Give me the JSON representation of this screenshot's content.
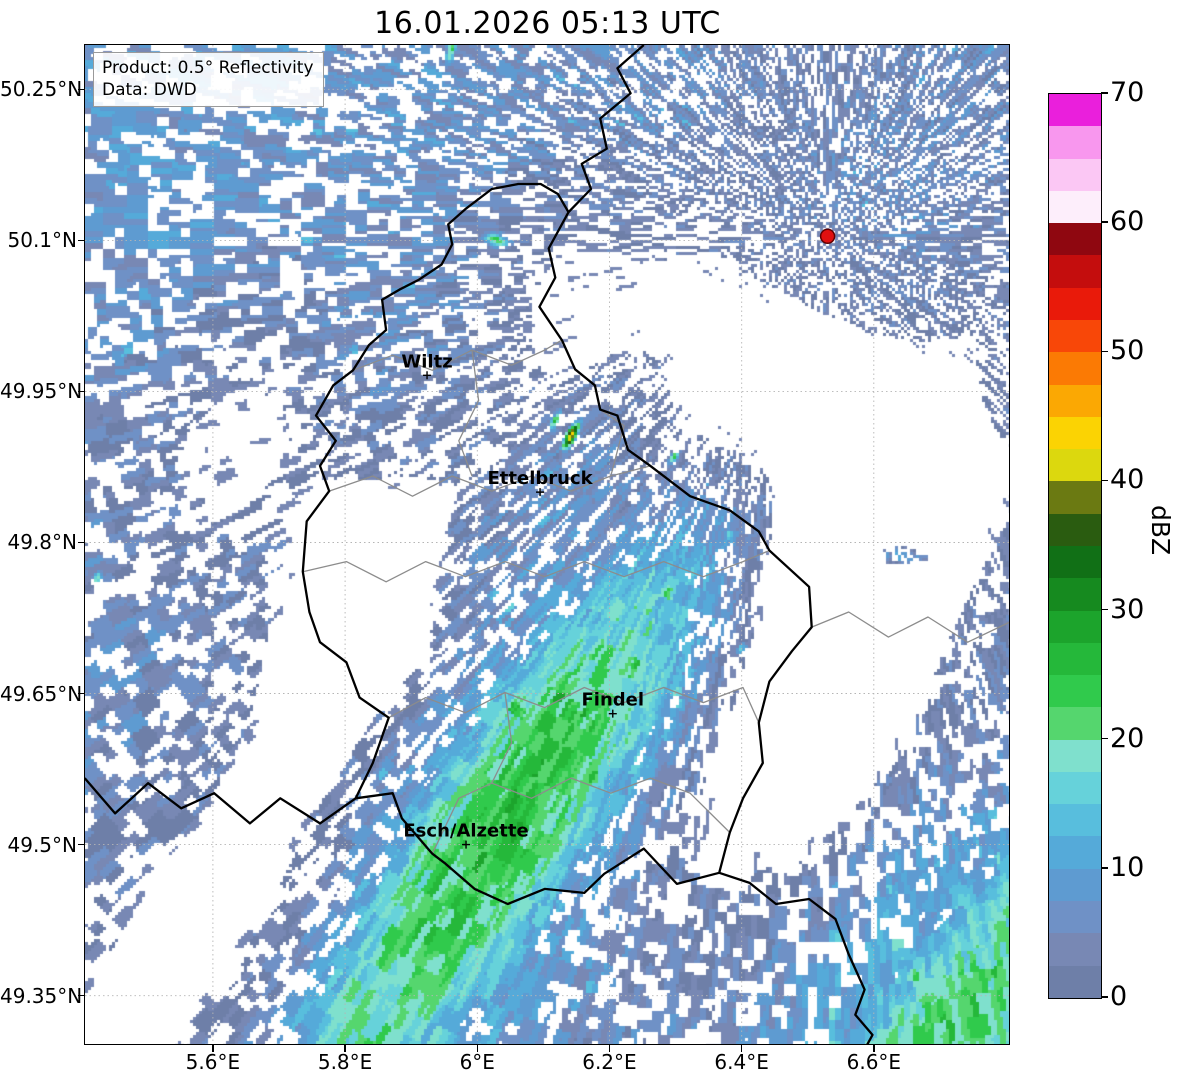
{
  "title": "16.01.2026 05:13 UTC",
  "info_box": {
    "line1": "Product: 0.5° Reflectivity",
    "line2": "Data: DWD"
  },
  "axes": {
    "lat_ticks": [
      {
        "label": "50.25°N",
        "value": 50.25
      },
      {
        "label": "50.1°N",
        "value": 50.1
      },
      {
        "label": "49.95°N",
        "value": 49.95
      },
      {
        "label": "49.8°N",
        "value": 49.8
      },
      {
        "label": "49.65°N",
        "value": 49.65
      },
      {
        "label": "49.5°N",
        "value": 49.5
      },
      {
        "label": "49.35°N",
        "value": 49.35
      }
    ],
    "lon_ticks": [
      {
        "label": "5.6°E",
        "value": 5.6
      },
      {
        "label": "5.8°E",
        "value": 5.8
      },
      {
        "label": "6°E",
        "value": 6.0
      },
      {
        "label": "6.2°E",
        "value": 6.2
      },
      {
        "label": "6.4°E",
        "value": 6.4
      },
      {
        "label": "6.6°E",
        "value": 6.6
      }
    ]
  },
  "map_extent": {
    "lon_min": 5.4065,
    "lon_max": 6.806,
    "lat_min": 49.301,
    "lat_max": 50.294
  },
  "colorbar": {
    "label": "dBZ",
    "vmin": 0,
    "vmax": 70,
    "step": 2.5,
    "ticks": [
      {
        "label": "0",
        "value": 0
      },
      {
        "label": "10",
        "value": 10
      },
      {
        "label": "20",
        "value": 20
      },
      {
        "label": "30",
        "value": 30
      },
      {
        "label": "40",
        "value": 40
      },
      {
        "label": "50",
        "value": 50
      },
      {
        "label": "60",
        "value": 60
      },
      {
        "label": "70",
        "value": 70
      }
    ],
    "colors_bottom_to_top": [
      "#6e7fa8",
      "#7888b4",
      "#6f91c6",
      "#5e9bd1",
      "#55aad9",
      "#58bedd",
      "#66d2da",
      "#7fe0cd",
      "#55d66e",
      "#30ca4c",
      "#25b83a",
      "#1ca42c",
      "#168a1f",
      "#117016",
      "#2a5c10",
      "#6b7a12",
      "#dcd80e",
      "#fbd303",
      "#fba803",
      "#fb7a04",
      "#f84708",
      "#e91a0a",
      "#c40d0d",
      "#8f0710",
      "#fdeefb",
      "#fbc7f4",
      "#f897ee",
      "#ea1fdc"
    ]
  },
  "cities": [
    {
      "name": "Wiltz",
      "lon": 5.924,
      "lat": 49.966
    },
    {
      "name": "Ettelbruck",
      "lon": 6.095,
      "lat": 49.85
    },
    {
      "name": "Findel",
      "lon": 6.205,
      "lat": 49.63
    },
    {
      "name": "Esch/Alzette",
      "lon": 5.983,
      "lat": 49.5
    }
  ],
  "radar_site": {
    "lon": 6.53,
    "lat": 50.104,
    "fill": "#e01010",
    "edge": "#600000"
  },
  "style": {
    "grid_color": "#b5b5b5",
    "national_border_color": "#000000",
    "regional_border_color": "#8c8c8c",
    "city_label_color": "#000000"
  },
  "radar_field": {
    "blobs": [
      {
        "lon": 5.55,
        "lat": 50.21,
        "amp": 7,
        "smaj": 0.5,
        "smin": 0.3,
        "ang": 35
      },
      {
        "lon": 5.9,
        "lat": 50.13,
        "amp": 6.5,
        "smaj": 0.4,
        "smin": 0.28,
        "ang": 35
      },
      {
        "lon": 6.22,
        "lat": 50.27,
        "amp": 5.5,
        "smaj": 0.3,
        "smin": 0.22,
        "ang": 35
      },
      {
        "lon": 5.48,
        "lat": 49.97,
        "amp": 6,
        "smaj": 0.38,
        "smin": 0.26,
        "ang": 35
      },
      {
        "lon": 5.85,
        "lat": 49.92,
        "amp": 4.5,
        "smaj": 0.3,
        "smin": 0.22,
        "ang": 35
      },
      {
        "lon": 6.05,
        "lat": 50.0,
        "amp": 4.5,
        "smaj": 0.28,
        "smin": 0.22,
        "ang": 35
      },
      {
        "lon": 6.58,
        "lat": 50.1,
        "amp": 7,
        "smaj": 0.22,
        "smin": 0.15,
        "ang": 25
      },
      {
        "lon": 6.73,
        "lat": 50.25,
        "amp": 5,
        "smaj": 0.24,
        "smin": 0.18,
        "ang": 30
      },
      {
        "lon": 6.4,
        "lat": 50.12,
        "amp": 4,
        "smaj": 0.22,
        "smin": 0.16,
        "ang": 35
      },
      {
        "lon": 5.52,
        "lat": 49.74,
        "amp": 6,
        "smaj": 0.4,
        "smin": 0.28,
        "ang": 35
      },
      {
        "lon": 5.8,
        "lat": 49.6,
        "amp": 5,
        "smaj": 0.3,
        "smin": 0.2,
        "ang": 35
      },
      {
        "lon": 5.43,
        "lat": 49.58,
        "amp": 5,
        "smaj": 0.2,
        "smin": 0.12,
        "ang": 35
      },
      {
        "lon": 6.28,
        "lat": 49.85,
        "amp": 4.5,
        "smaj": 0.26,
        "smin": 0.2,
        "ang": 38
      },
      {
        "lon": 6.17,
        "lat": 49.93,
        "amp": 4,
        "smaj": 0.22,
        "smin": 0.16,
        "ang": 38
      },
      {
        "lon": 6.76,
        "lat": 49.67,
        "amp": 5.5,
        "smaj": 0.26,
        "smin": 0.13,
        "ang": 40
      },
      {
        "lon": 6.74,
        "lat": 49.52,
        "amp": 4.5,
        "smaj": 0.2,
        "smin": 0.12,
        "ang": 40
      },
      {
        "lon": 6.38,
        "lat": 49.37,
        "amp": 5,
        "smaj": 0.28,
        "smin": 0.16,
        "ang": 40
      },
      {
        "lon": 6.22,
        "lat": 49.33,
        "amp": 5,
        "smaj": 0.24,
        "smin": 0.14,
        "ang": 40
      },
      {
        "lon": 5.75,
        "lat": 49.3,
        "amp": 5,
        "smaj": 0.28,
        "smin": 0.08,
        "ang": 15
      },
      {
        "lon": 6.79,
        "lat": 49.95,
        "amp": 4,
        "smaj": 0.16,
        "smin": 0.12,
        "ang": 40
      },
      {
        "lon": 6.12,
        "lat": 49.78,
        "amp": 9,
        "smaj": 0.25,
        "smin": 0.12,
        "ang": 38
      },
      {
        "lon": 5.86,
        "lat": 49.345,
        "amp": 23,
        "smaj": 0.2,
        "smin": 0.09,
        "ang": 38
      },
      {
        "lon": 5.945,
        "lat": 49.43,
        "amp": 26,
        "smaj": 0.24,
        "smin": 0.09,
        "ang": 38
      },
      {
        "lon": 6.035,
        "lat": 49.515,
        "amp": 27,
        "smaj": 0.26,
        "smin": 0.09,
        "ang": 38
      },
      {
        "lon": 6.125,
        "lat": 49.6,
        "amp": 26,
        "smaj": 0.25,
        "smin": 0.09,
        "ang": 38
      },
      {
        "lon": 6.21,
        "lat": 49.685,
        "amp": 22,
        "smaj": 0.21,
        "smin": 0.08,
        "ang": 38
      },
      {
        "lon": 6.3,
        "lat": 49.77,
        "amp": 11,
        "smaj": 0.18,
        "smin": 0.09,
        "ang": 38
      },
      {
        "lon": 6.05,
        "lat": 49.55,
        "amp": 15,
        "smaj": 0.45,
        "smin": 0.14,
        "ang": 38
      },
      {
        "lon": 5.92,
        "lat": 49.38,
        "amp": 13,
        "smaj": 0.4,
        "smin": 0.16,
        "ang": 38
      },
      {
        "lon": 6.72,
        "lat": 49.305,
        "amp": 22,
        "smaj": 0.26,
        "smin": 0.1,
        "ang": 40
      },
      {
        "lon": 6.8,
        "lat": 49.36,
        "amp": 17,
        "smaj": 0.2,
        "smin": 0.1,
        "ang": 40
      },
      {
        "lon": 6.66,
        "lat": 49.35,
        "amp": 12,
        "smaj": 0.32,
        "smin": 0.15,
        "ang": 40
      },
      {
        "lon": 6.785,
        "lat": 49.47,
        "amp": 10,
        "smaj": 0.16,
        "smin": 0.09,
        "ang": 40
      },
      {
        "lon": 6.5,
        "lat": 49.72,
        "amp": -7,
        "smaj": 0.26,
        "smin": 0.18,
        "ang": 38
      },
      {
        "lon": 5.6,
        "lat": 49.89,
        "amp": -5,
        "smaj": 0.15,
        "smin": 0.1,
        "ang": 35
      },
      {
        "lon": 5.83,
        "lat": 49.75,
        "amp": -5,
        "smaj": 0.14,
        "smin": 0.09,
        "ang": 35
      },
      {
        "lon": 6.42,
        "lat": 49.97,
        "amp": -4,
        "smaj": 0.18,
        "smin": 0.12,
        "ang": 35
      },
      {
        "lon": 5.7,
        "lat": 49.42,
        "amp": -6,
        "smaj": 0.22,
        "smin": 0.15,
        "ang": 35
      },
      {
        "lon": 6.1,
        "lat": 50.06,
        "amp": -4,
        "smaj": 0.12,
        "smin": 0.09,
        "ang": 35
      },
      {
        "lon": 6.142,
        "lat": 49.906,
        "amp": 44,
        "smaj": 0.013,
        "smin": 0.005,
        "ang": 50
      },
      {
        "lon": 6.118,
        "lat": 49.921,
        "amp": 27,
        "smaj": 0.01,
        "smin": 0.004,
        "ang": 50
      },
      {
        "lon": 6.03,
        "lat": 50.1,
        "amp": 25,
        "smaj": 0.006,
        "smin": 0.016,
        "ang": 80
      },
      {
        "lon": 6.298,
        "lat": 49.885,
        "amp": 26,
        "smaj": 0.008,
        "smin": 0.004,
        "ang": 40
      },
      {
        "lon": 6.4,
        "lat": 49.695,
        "amp": 24,
        "smaj": 0.008,
        "smin": 0.004,
        "ang": 40
      },
      {
        "lon": 6.645,
        "lat": 49.787,
        "amp": 15,
        "smaj": 0.03,
        "smin": 0.007,
        "ang": 0
      },
      {
        "lon": 5.425,
        "lat": 49.765,
        "amp": 22,
        "smaj": 0.006,
        "smin": 0.004,
        "ang": 40
      },
      {
        "lon": 5.96,
        "lat": 50.288,
        "amp": 24,
        "smaj": 0.01,
        "smin": 0.005,
        "ang": 70
      }
    ]
  },
  "borders": {
    "national": [
      [
        [
          6.252,
          50.294
        ],
        [
          6.212,
          50.271
        ],
        [
          6.232,
          50.246
        ],
        [
          6.186,
          50.221
        ],
        [
          6.196,
          50.191
        ],
        [
          6.158,
          50.176
        ],
        [
          6.172,
          50.151
        ],
        [
          6.138,
          50.128
        ]
      ],
      [
        [
          6.138,
          50.128
        ],
        [
          6.108,
          50.092
        ],
        [
          6.118,
          50.063
        ],
        [
          6.094,
          50.034
        ],
        [
          6.128,
          50.001
        ],
        [
          6.148,
          49.972
        ],
        [
          6.178,
          49.956
        ],
        [
          6.186,
          49.932
        ],
        [
          6.212,
          49.926
        ],
        [
          6.228,
          49.892
        ],
        [
          6.262,
          49.876
        ],
        [
          6.322,
          49.846
        ],
        [
          6.382,
          49.832
        ],
        [
          6.426,
          49.811
        ],
        [
          6.442,
          49.792
        ],
        [
          6.502,
          49.756
        ],
        [
          6.506,
          49.716
        ],
        [
          6.476,
          49.692
        ],
        [
          6.442,
          49.662
        ],
        [
          6.426,
          49.621
        ],
        [
          6.432,
          49.581
        ],
        [
          6.402,
          49.546
        ],
        [
          6.382,
          49.512
        ],
        [
          6.366,
          49.472
        ],
        [
          6.302,
          49.461
        ],
        [
          6.252,
          49.496
        ],
        [
          6.192,
          49.471
        ],
        [
          6.162,
          49.452
        ],
        [
          6.102,
          49.456
        ],
        [
          6.046,
          49.441
        ],
        [
          5.996,
          49.456
        ],
        [
          5.952,
          49.481
        ],
        [
          5.932,
          49.491
        ],
        [
          5.886,
          49.526
        ],
        [
          5.872,
          49.551
        ],
        [
          5.816,
          49.546
        ],
        [
          5.842,
          49.581
        ],
        [
          5.866,
          49.626
        ],
        [
          5.822,
          49.646
        ],
        [
          5.802,
          49.681
        ],
        [
          5.762,
          49.701
        ],
        [
          5.746,
          49.731
        ],
        [
          5.736,
          49.771
        ],
        [
          5.742,
          49.821
        ],
        [
          5.776,
          49.851
        ],
        [
          5.762,
          49.876
        ],
        [
          5.786,
          49.901
        ],
        [
          5.756,
          49.926
        ],
        [
          5.782,
          49.956
        ],
        [
          5.812,
          49.971
        ],
        [
          5.836,
          49.996
        ],
        [
          5.862,
          50.011
        ],
        [
          5.856,
          50.041
        ],
        [
          5.882,
          50.051
        ],
        [
          5.912,
          50.061
        ],
        [
          5.946,
          50.076
        ],
        [
          5.962,
          50.096
        ],
        [
          5.956,
          50.116
        ],
        [
          5.982,
          50.131
        ],
        [
          6.022,
          50.151
        ],
        [
          6.062,
          50.156
        ],
        [
          6.096,
          50.156
        ],
        [
          6.122,
          50.146
        ],
        [
          6.138,
          50.128
        ]
      ],
      [
        [
          5.816,
          49.546
        ],
        [
          5.762,
          49.521
        ],
        [
          5.702,
          49.546
        ],
        [
          5.656,
          49.521
        ],
        [
          5.602,
          49.551
        ],
        [
          5.552,
          49.536
        ],
        [
          5.502,
          49.561
        ],
        [
          5.452,
          49.531
        ],
        [
          5.406,
          49.566
        ]
      ],
      [
        [
          6.366,
          49.472
        ],
        [
          6.412,
          49.462
        ],
        [
          6.452,
          49.441
        ],
        [
          6.502,
          49.446
        ],
        [
          6.542,
          49.426
        ],
        [
          6.562,
          49.391
        ],
        [
          6.586,
          49.356
        ],
        [
          6.572,
          49.331
        ],
        [
          6.598,
          49.311
        ],
        [
          6.588,
          49.299
        ]
      ]
    ],
    "regional": [
      [
        [
          5.812,
          49.971
        ],
        [
          5.872,
          49.986
        ],
        [
          5.932,
          49.971
        ],
        [
          5.992,
          49.991
        ],
        [
          6.052,
          49.976
        ],
        [
          6.102,
          49.991
        ],
        [
          6.128,
          50.001
        ]
      ],
      [
        [
          5.776,
          49.851
        ],
        [
          5.842,
          49.866
        ],
        [
          5.902,
          49.846
        ],
        [
          5.962,
          49.866
        ],
        [
          6.022,
          49.851
        ],
        [
          6.082,
          49.866
        ],
        [
          6.142,
          49.851
        ],
        [
          6.202,
          49.866
        ],
        [
          6.262,
          49.876
        ]
      ],
      [
        [
          5.736,
          49.771
        ],
        [
          5.802,
          49.781
        ],
        [
          5.862,
          49.761
        ],
        [
          5.922,
          49.781
        ],
        [
          5.982,
          49.766
        ],
        [
          6.042,
          49.781
        ],
        [
          6.102,
          49.766
        ],
        [
          6.162,
          49.781
        ],
        [
          6.222,
          49.766
        ],
        [
          6.282,
          49.781
        ],
        [
          6.342,
          49.766
        ],
        [
          6.402,
          49.781
        ],
        [
          6.442,
          49.792
        ]
      ],
      [
        [
          5.866,
          49.626
        ],
        [
          5.922,
          49.646
        ],
        [
          5.982,
          49.631
        ],
        [
          6.042,
          49.651
        ],
        [
          6.102,
          49.636
        ],
        [
          6.162,
          49.656
        ],
        [
          6.222,
          49.641
        ],
        [
          6.282,
          49.656
        ],
        [
          6.342,
          49.641
        ],
        [
          6.402,
          49.656
        ],
        [
          6.426,
          49.621
        ]
      ],
      [
        [
          5.932,
          49.491
        ],
        [
          5.972,
          49.546
        ],
        [
          6.022,
          49.561
        ],
        [
          6.082,
          49.546
        ],
        [
          6.142,
          49.566
        ],
        [
          6.202,
          49.551
        ],
        [
          6.262,
          49.566
        ],
        [
          6.322,
          49.551
        ],
        [
          6.382,
          49.512
        ]
      ],
      [
        [
          6.042,
          49.651
        ],
        [
          6.052,
          49.601
        ],
        [
          6.022,
          49.561
        ]
      ],
      [
        [
          5.992,
          49.991
        ],
        [
          6.002,
          49.941
        ],
        [
          5.972,
          49.901
        ],
        [
          5.992,
          49.866
        ]
      ],
      [
        [
          6.202,
          49.866
        ],
        [
          6.222,
          49.916
        ],
        [
          6.186,
          49.932
        ]
      ],
      [
        [
          6.506,
          49.716
        ],
        [
          6.562,
          49.731
        ],
        [
          6.622,
          49.706
        ],
        [
          6.682,
          49.726
        ],
        [
          6.742,
          49.701
        ],
        [
          6.806,
          49.721
        ]
      ]
    ]
  }
}
